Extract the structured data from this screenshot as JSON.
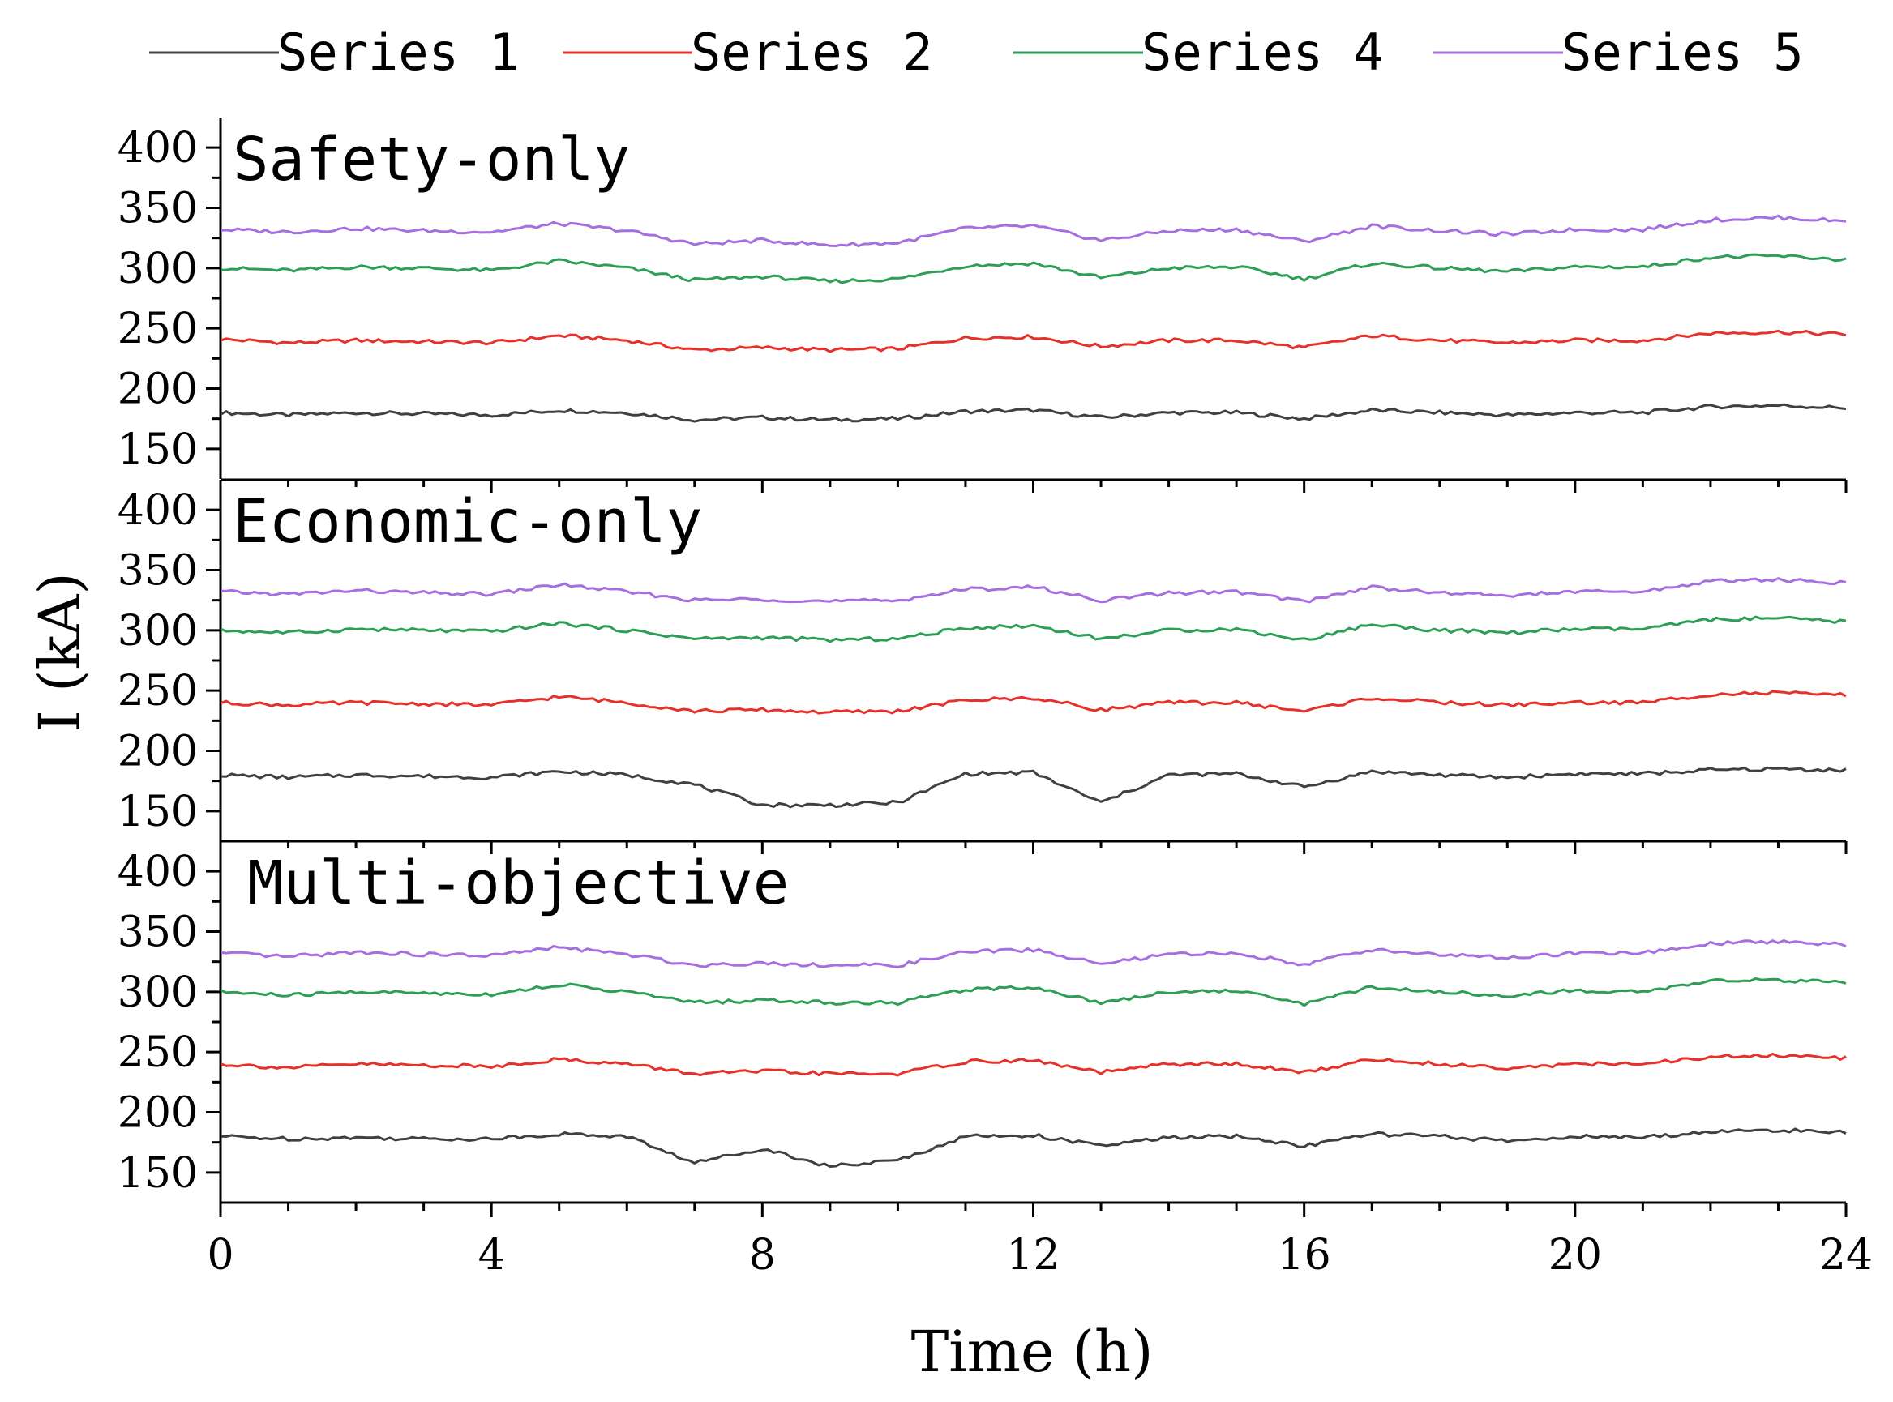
{
  "chart_data": {
    "type": "line",
    "xlabel": "Time (h)",
    "ylabel": "I (kA)",
    "xlim": [
      0,
      24
    ],
    "ylim": [
      125,
      425
    ],
    "x_ticks": [
      "0",
      "4",
      "8",
      "12",
      "16",
      "20",
      "24"
    ],
    "y_ticks": [
      "150",
      "200",
      "250",
      "300",
      "350",
      "400"
    ],
    "legend": {
      "position": "top",
      "entries": [
        {
          "name": "Series 1",
          "color": "#404040"
        },
        {
          "name": "Series 2",
          "color": "#e8302a"
        },
        {
          "name": "Series 4",
          "color": "#2e9e57"
        },
        {
          "name": "Series 5",
          "color": "#a66ee0"
        }
      ]
    },
    "x": [
      0,
      1,
      2,
      3,
      4,
      5,
      6,
      7,
      8,
      9,
      10,
      11,
      12,
      13,
      14,
      15,
      16,
      17,
      18,
      19,
      20,
      21,
      22,
      23,
      24
    ],
    "panels": [
      {
        "title": "Safety-only",
        "series": [
          {
            "name": "Series 1",
            "color": "#404040",
            "values": [
              180,
              178,
              180,
              179,
              178,
              182,
              180,
              174,
              176,
              174,
              175,
              181,
              182,
              176,
              180,
              180,
              175,
              182,
              180,
              178,
              180,
              180,
              185,
              186,
              184
            ]
          },
          {
            "name": "Series 2",
            "color": "#e8302a",
            "values": [
              241,
              238,
              240,
              239,
              238,
              244,
              240,
              232,
              234,
              232,
              233,
              242,
              243,
              235,
              240,
              240,
              234,
              244,
              240,
              238,
              240,
              240,
              246,
              247,
              245
            ]
          },
          {
            "name": "Series 4",
            "color": "#2e9e57",
            "values": [
              300,
              298,
              301,
              300,
              298,
              306,
              300,
              290,
              293,
              289,
              291,
              302,
              304,
              292,
              300,
              301,
              291,
              304,
              300,
              297,
              301,
              301,
              309,
              310,
              307
            ]
          },
          {
            "name": "Series 5",
            "color": "#a66ee0",
            "values": [
              332,
              330,
              333,
              331,
              330,
              337,
              331,
              320,
              323,
              319,
              321,
              333,
              335,
              323,
              331,
              332,
              322,
              335,
              331,
              328,
              332,
              332,
              340,
              342,
              339
            ]
          }
        ]
      },
      {
        "title": "Economic-only",
        "series": [
          {
            "name": "Series 1",
            "color": "#404040",
            "values": [
              180,
              178,
              180,
              179,
              178,
              183,
              180,
              172,
              155,
              155,
              157,
              181,
              182,
              157,
              180,
              181,
              170,
              183,
              180,
              178,
              181,
              181,
              184,
              185,
              184
            ]
          },
          {
            "name": "Series 2",
            "color": "#e8302a",
            "values": [
              240,
              238,
              240,
              239,
              238,
              245,
              240,
              233,
              234,
              232,
              233,
              242,
              244,
              234,
              240,
              240,
              233,
              244,
              240,
              238,
              240,
              240,
              247,
              248,
              246
            ]
          },
          {
            "name": "Series 4",
            "color": "#2e9e57",
            "values": [
              300,
              298,
              301,
              300,
              299,
              306,
              300,
              293,
              294,
              292,
              293,
              302,
              304,
              293,
              300,
              301,
              292,
              305,
              300,
              298,
              301,
              301,
              309,
              310,
              307
            ]
          },
          {
            "name": "Series 5",
            "color": "#a66ee0",
            "values": [
              332,
              330,
              333,
              331,
              330,
              338,
              332,
              325,
              326,
              324,
              325,
              334,
              336,
              325,
              331,
              332,
              324,
              336,
              331,
              329,
              332,
              332,
              341,
              342,
              339
            ]
          }
        ]
      },
      {
        "title": "Multi-objective",
        "series": [
          {
            "name": "Series 1",
            "color": "#404040",
            "values": [
              180,
              178,
              179,
              178,
              178,
              182,
              180,
              158,
              170,
              155,
              160,
              180,
              181,
              172,
              179,
              180,
              172,
              182,
              180,
              176,
              180,
              179,
              184,
              185,
              184
            ]
          },
          {
            "name": "Series 2",
            "color": "#e8302a",
            "values": [
              240,
              237,
              240,
              239,
              238,
              244,
              240,
              232,
              234,
              232,
              232,
              242,
              243,
              233,
              240,
              240,
              233,
              244,
              240,
              237,
              240,
              240,
              246,
              247,
              245
            ]
          },
          {
            "name": "Series 4",
            "color": "#2e9e57",
            "values": [
              300,
              297,
              300,
              299,
              298,
              306,
              300,
              291,
              293,
              291,
              291,
              302,
              304,
              291,
              300,
              301,
              290,
              304,
              300,
              297,
              301,
              300,
              309,
              310,
              307
            ]
          },
          {
            "name": "Series 5",
            "color": "#a66ee0",
            "values": [
              332,
              329,
              333,
              331,
              330,
              337,
              331,
              322,
              324,
              322,
              322,
              333,
              335,
              323,
              331,
              332,
              323,
              335,
              331,
              328,
              332,
              332,
              340,
              342,
              339
            ]
          }
        ]
      }
    ]
  }
}
